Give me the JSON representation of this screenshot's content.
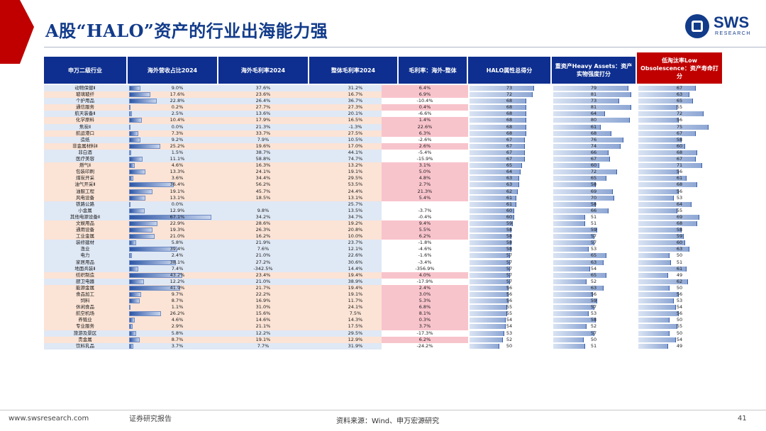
{
  "title": "A股“HALO”资产的行业出海能力强",
  "logo": {
    "brand": "SWS",
    "sub": "RESEARCH"
  },
  "headers": {
    "name": "申万二级行业",
    "share": "海外营收占比2024",
    "overseas_margin": "海外毛利率2024",
    "total_margin": "整体毛利率2024",
    "diff": "毛利率：海外-整体",
    "halo": "HALO属性总得分",
    "heavy": "重资产Heavy Assets：资产实物强度打分",
    "low": "低淘汰率Low Obsolescence：资产寿命打分"
  },
  "colors": {
    "header_blue": "#0e2f8f",
    "header_red": "#c00000",
    "row_blue": "#dfe8f5",
    "row_orange": "#fbe3d5",
    "diff_red": "#f8c4cc",
    "title_blue": "#123b8a"
  },
  "rows": [
    {
      "name": "动物保健Ⅱ",
      "share": "9.0%",
      "share_v": 9.0,
      "over": "37.6%",
      "total": "31.2%",
      "diff": "6.4%",
      "diff_v": 6.4,
      "halo": 73,
      "heavy": 79,
      "low": 67,
      "band": "blue"
    },
    {
      "name": "玻璃玻纤",
      "share": "17.6%",
      "share_v": 17.6,
      "over": "23.6%",
      "total": "16.7%",
      "diff": "6.9%",
      "diff_v": 6.9,
      "halo": 72,
      "heavy": 81,
      "low": 63,
      "band": "orange"
    },
    {
      "name": "个护用品",
      "share": "22.8%",
      "share_v": 22.8,
      "over": "26.4%",
      "total": "36.7%",
      "diff": "-10.4%",
      "diff_v": -10.4,
      "halo": 68,
      "heavy": 73,
      "low": 65,
      "band": "blue"
    },
    {
      "name": "通信服务",
      "share": "0.2%",
      "share_v": 0.2,
      "over": "27.7%",
      "total": "27.3%",
      "diff": "0.4%",
      "diff_v": 0.4,
      "halo": 68,
      "heavy": 81,
      "low": 55,
      "band": "orange"
    },
    {
      "name": "航天装备Ⅱ",
      "share": "2.5%",
      "share_v": 2.5,
      "over": "13.6%",
      "total": "20.1%",
      "diff": "-6.6%",
      "diff_v": -6.6,
      "halo": 68,
      "heavy": 64,
      "low": 72,
      "band": "blue"
    },
    {
      "name": "化学原料",
      "share": "10.4%",
      "share_v": 10.4,
      "over": "17.9%",
      "total": "16.5%",
      "diff": "1.4%",
      "diff_v": 1.4,
      "halo": 68,
      "heavy": 80,
      "low": 56,
      "band": "orange"
    },
    {
      "name": "焦炭Ⅱ",
      "share": "0.0%",
      "share_v": 0.0,
      "over": "21.3%",
      "total": "-1.3%",
      "diff": "22.6%",
      "diff_v": 22.6,
      "halo": 68,
      "heavy": 61,
      "low": 75,
      "band": "blue"
    },
    {
      "name": "航运港口",
      "share": "7.3%",
      "share_v": 7.3,
      "over": "33.7%",
      "total": "27.5%",
      "diff": "6.3%",
      "diff_v": 6.3,
      "halo": 68,
      "heavy": 68,
      "low": 67,
      "band": "orange"
    },
    {
      "name": "造纸",
      "share": "9.2%",
      "share_v": 9.2,
      "over": "7.9%",
      "total": "10.5%",
      "diff": "-2.6%",
      "diff_v": -2.6,
      "halo": 67,
      "heavy": 76,
      "low": 58,
      "band": "blue"
    },
    {
      "name": "非金属材料Ⅱ",
      "share": "25.2%",
      "share_v": 25.2,
      "over": "19.6%",
      "total": "17.0%",
      "diff": "2.6%",
      "diff_v": 2.6,
      "halo": 67,
      "heavy": 74,
      "low": 60,
      "band": "orange"
    },
    {
      "name": "非白酒",
      "share": "1.5%",
      "share_v": 1.5,
      "over": "38.7%",
      "total": "44.1%",
      "diff": "-5.4%",
      "diff_v": -5.4,
      "halo": 67,
      "heavy": 66,
      "low": 68,
      "band": "blue"
    },
    {
      "name": "医疗美容",
      "share": "11.1%",
      "share_v": 11.1,
      "over": "58.8%",
      "total": "74.7%",
      "diff": "-15.9%",
      "diff_v": -15.9,
      "halo": 67,
      "heavy": 67,
      "low": 67,
      "band": "blue"
    },
    {
      "name": "燃气Ⅱ",
      "share": "4.6%",
      "share_v": 4.6,
      "over": "16.3%",
      "total": "13.2%",
      "diff": "3.1%",
      "diff_v": 3.1,
      "halo": 65,
      "heavy": 60,
      "low": 71,
      "band": "orange"
    },
    {
      "name": "包装印刷",
      "share": "13.3%",
      "share_v": 13.3,
      "over": "24.1%",
      "total": "19.1%",
      "diff": "5.0%",
      "diff_v": 5.0,
      "halo": 64,
      "heavy": 72,
      "low": 56,
      "band": "orange"
    },
    {
      "name": "煤炭开采",
      "share": "3.6%",
      "share_v": 3.6,
      "over": "34.4%",
      "total": "29.5%",
      "diff": "4.8%",
      "diff_v": 4.8,
      "halo": 63,
      "heavy": 65,
      "low": 61,
      "band": "orange"
    },
    {
      "name": "油气开采Ⅱ",
      "share": "36.4%",
      "share_v": 36.4,
      "over": "56.2%",
      "total": "53.5%",
      "diff": "2.7%",
      "diff_v": 2.7,
      "halo": 63,
      "heavy": 58,
      "low": 68,
      "band": "orange"
    },
    {
      "name": "油服工程",
      "share": "19.1%",
      "share_v": 19.1,
      "over": "45.7%",
      "total": "24.4%",
      "diff": "21.3%",
      "diff_v": 21.3,
      "halo": 62,
      "heavy": 69,
      "low": 56,
      "band": "orange"
    },
    {
      "name": "风电设备",
      "share": "13.1%",
      "share_v": 13.1,
      "over": "18.5%",
      "total": "13.1%",
      "diff": "5.4%",
      "diff_v": 5.4,
      "halo": 61,
      "heavy": 70,
      "low": 53,
      "band": "orange"
    },
    {
      "name": "铁路公路",
      "share": "0.0%",
      "share_v": 0.0,
      "over": "",
      "total": "25.7%",
      "diff": "",
      "diff_v": 0,
      "halo": 61,
      "heavy": 58,
      "low": 64,
      "band": "blue"
    },
    {
      "name": "小金属",
      "share": "12.9%",
      "share_v": 12.9,
      "over": "9.8%",
      "total": "13.5%",
      "diff": "-3.7%",
      "diff_v": -3.7,
      "halo": 60,
      "heavy": 66,
      "low": 55,
      "band": "blue"
    },
    {
      "name": "其他电源设备Ⅱ",
      "share": "67.1%",
      "share_v": 67.1,
      "over": "34.2%",
      "total": "34.7%",
      "diff": "-0.4%",
      "diff_v": -0.4,
      "halo": 60,
      "heavy": 51,
      "low": 69,
      "band": "blue"
    },
    {
      "name": "文娱用品",
      "share": "22.9%",
      "share_v": 22.9,
      "over": "28.6%",
      "total": "19.2%",
      "diff": "9.4%",
      "diff_v": 9.4,
      "halo": 59,
      "heavy": 51,
      "low": 68,
      "band": "orange"
    },
    {
      "name": "通用设备",
      "share": "19.3%",
      "share_v": 19.3,
      "over": "26.3%",
      "total": "20.8%",
      "diff": "5.5%",
      "diff_v": 5.5,
      "halo": 58,
      "heavy": 59,
      "low": 58,
      "band": "orange"
    },
    {
      "name": "工业金属",
      "share": "21.0%",
      "share_v": 21.0,
      "over": "16.2%",
      "total": "10.0%",
      "diff": "6.2%",
      "diff_v": 6.2,
      "halo": 58,
      "heavy": 57,
      "low": 59,
      "band": "orange"
    },
    {
      "name": "装修建材",
      "share": "5.8%",
      "share_v": 5.8,
      "over": "21.9%",
      "total": "23.7%",
      "diff": "-1.8%",
      "diff_v": -1.8,
      "halo": 58,
      "heavy": 57,
      "low": 60,
      "band": "blue"
    },
    {
      "name": "渔业",
      "share": "39.4%",
      "share_v": 39.4,
      "over": "7.6%",
      "total": "12.1%",
      "diff": "-4.6%",
      "diff_v": -4.6,
      "halo": 58,
      "heavy": 53,
      "low": 63,
      "band": "blue"
    },
    {
      "name": "电力",
      "share": "2.4%",
      "share_v": 2.4,
      "over": "21.0%",
      "total": "22.6%",
      "diff": "-1.6%",
      "diff_v": -1.6,
      "halo": 57,
      "heavy": 65,
      "low": 50,
      "band": "blue"
    },
    {
      "name": "家居用品",
      "share": "38.1%",
      "share_v": 38.1,
      "over": "27.2%",
      "total": "30.6%",
      "diff": "-3.4%",
      "diff_v": -3.4,
      "halo": 57,
      "heavy": 63,
      "low": 51,
      "band": "blue"
    },
    {
      "name": "地面兵装Ⅱ",
      "share": "7.4%",
      "share_v": 7.4,
      "over": "-342.5%",
      "total": "14.4%",
      "diff": "-356.9%",
      "diff_v": -356.9,
      "halo": 57,
      "heavy": 54,
      "low": 61,
      "band": "blue"
    },
    {
      "name": "纺织制造",
      "share": "43.2%",
      "share_v": 43.2,
      "over": "23.4%",
      "total": "19.4%",
      "diff": "4.0%",
      "diff_v": 4.0,
      "halo": 57,
      "heavy": 65,
      "low": 49,
      "band": "orange"
    },
    {
      "name": "厨卫电器",
      "share": "12.2%",
      "share_v": 12.2,
      "over": "21.0%",
      "total": "38.9%",
      "diff": "-17.9%",
      "diff_v": -17.9,
      "halo": 57,
      "heavy": 52,
      "low": 62,
      "band": "blue"
    },
    {
      "name": "能源金属",
      "share": "41.9%",
      "share_v": 41.9,
      "over": "21.7%",
      "total": "19.4%",
      "diff": "2.4%",
      "diff_v": 2.4,
      "halo": 56,
      "heavy": 63,
      "low": 50,
      "band": "orange"
    },
    {
      "name": "食品加工",
      "share": "9.7%",
      "share_v": 9.7,
      "over": "22.2%",
      "total": "19.1%",
      "diff": "3.0%",
      "diff_v": 3.0,
      "halo": 56,
      "heavy": 56,
      "low": 56,
      "band": "orange"
    },
    {
      "name": "饲料",
      "share": "8.7%",
      "share_v": 8.7,
      "over": "16.9%",
      "total": "11.7%",
      "diff": "5.3%",
      "diff_v": 5.3,
      "halo": 56,
      "heavy": 59,
      "low": 53,
      "band": "orange"
    },
    {
      "name": "休闲食品",
      "share": "1.1%",
      "share_v": 1.1,
      "over": "31.0%",
      "total": "24.1%",
      "diff": "6.8%",
      "diff_v": 6.8,
      "halo": 55,
      "heavy": 57,
      "low": 54,
      "band": "orange"
    },
    {
      "name": "航空机场",
      "share": "26.2%",
      "share_v": 26.2,
      "over": "15.6%",
      "total": "7.5%",
      "diff": "8.1%",
      "diff_v": 8.1,
      "halo": 55,
      "heavy": 53,
      "low": 56,
      "band": "orange"
    },
    {
      "name": "养殖业",
      "share": "4.6%",
      "share_v": 4.6,
      "over": "14.6%",
      "total": "14.3%",
      "diff": "0.3%",
      "diff_v": 0.3,
      "halo": 54,
      "heavy": 58,
      "low": 50,
      "band": "orange"
    },
    {
      "name": "专业服务",
      "share": "2.9%",
      "share_v": 2.9,
      "over": "21.1%",
      "total": "17.5%",
      "diff": "3.7%",
      "diff_v": 3.7,
      "halo": 54,
      "heavy": 52,
      "low": 55,
      "band": "orange"
    },
    {
      "name": "旅游及景区",
      "share": "5.8%",
      "share_v": 5.8,
      "over": "12.2%",
      "total": "29.5%",
      "diff": "-17.3%",
      "diff_v": -17.3,
      "halo": 53,
      "heavy": 57,
      "low": 50,
      "band": "blue"
    },
    {
      "name": "贵金属",
      "share": "8.7%",
      "share_v": 8.7,
      "over": "19.1%",
      "total": "12.9%",
      "diff": "6.2%",
      "diff_v": 6.2,
      "halo": 52,
      "heavy": 50,
      "low": 54,
      "band": "orange"
    },
    {
      "name": "饮料乳品",
      "share": "3.7%",
      "share_v": 3.7,
      "over": "7.7%",
      "total": "31.9%",
      "diff": "-24.2%",
      "diff_v": -24.2,
      "halo": 50,
      "heavy": 51,
      "low": 49,
      "band": "blue"
    }
  ],
  "footer": {
    "url": "www.swsresearch.com",
    "note": "证券研究报告",
    "source": "资料来源：Wind、申万宏源研究",
    "page": "41"
  }
}
